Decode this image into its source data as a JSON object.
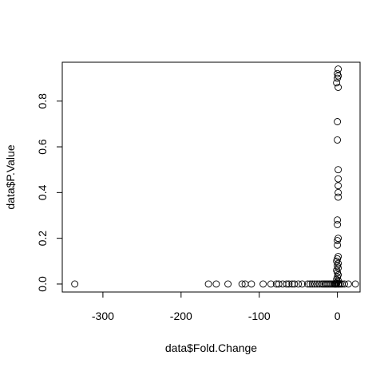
{
  "chart_data": {
    "type": "scatter",
    "title": "",
    "xlabel": "data$Fold.Change",
    "ylabel": "data$P.Value",
    "xlim": [
      -352,
      29
    ],
    "ylim": [
      -0.035,
      0.97
    ],
    "x_ticks": [
      -300,
      -200,
      -100,
      0
    ],
    "x_tick_labels": [
      "-300",
      "-200",
      "-100",
      "0"
    ],
    "y_ticks": [
      0.0,
      0.2,
      0.4,
      0.6,
      0.8
    ],
    "y_tick_labels": [
      "0.0",
      "0.2",
      "0.4",
      "0.6",
      "0.8"
    ],
    "grid": false,
    "legend": "none",
    "marker": "open-circle",
    "colors": {
      "points": "#000000",
      "axes": "#000000",
      "background": "#ffffff"
    },
    "points": [
      {
        "x": -336,
        "y": 0.0
      },
      {
        "x": -165,
        "y": 0.0
      },
      {
        "x": -155,
        "y": 0.0
      },
      {
        "x": -140,
        "y": 0.0
      },
      {
        "x": -122,
        "y": 0.0
      },
      {
        "x": -118,
        "y": 0.0
      },
      {
        "x": -110,
        "y": 0.0
      },
      {
        "x": -95,
        "y": 0.0
      },
      {
        "x": -85,
        "y": 0.0
      },
      {
        "x": -78,
        "y": 0.0
      },
      {
        "x": -75,
        "y": 0.0
      },
      {
        "x": -70,
        "y": 0.0
      },
      {
        "x": -65,
        "y": 0.0
      },
      {
        "x": -62,
        "y": 0.0
      },
      {
        "x": -58,
        "y": 0.0
      },
      {
        "x": -55,
        "y": 0.0
      },
      {
        "x": -50,
        "y": 0.0
      },
      {
        "x": -45,
        "y": 0.0
      },
      {
        "x": -38,
        "y": 0.0
      },
      {
        "x": -35,
        "y": 0.0
      },
      {
        "x": -32,
        "y": 0.0
      },
      {
        "x": -29,
        "y": 0.0
      },
      {
        "x": -26,
        "y": 0.0
      },
      {
        "x": -23,
        "y": 0.0
      },
      {
        "x": -20,
        "y": 0.0
      },
      {
        "x": -18,
        "y": 0.0
      },
      {
        "x": -16,
        "y": 0.0
      },
      {
        "x": -14,
        "y": 0.0
      },
      {
        "x": -12,
        "y": 0.0
      },
      {
        "x": -10,
        "y": 0.0
      },
      {
        "x": -8,
        "y": 0.0
      },
      {
        "x": -6,
        "y": 0.0
      },
      {
        "x": -4,
        "y": 0.0
      },
      {
        "x": -3,
        "y": 0.0
      },
      {
        "x": -2,
        "y": 0.0
      },
      {
        "x": -1,
        "y": 0.0
      },
      {
        "x": 1,
        "y": 0.0
      },
      {
        "x": 2,
        "y": 0.0
      },
      {
        "x": 4,
        "y": 0.0
      },
      {
        "x": 6,
        "y": 0.0
      },
      {
        "x": 9,
        "y": 0.0
      },
      {
        "x": 14,
        "y": 0.0
      },
      {
        "x": 23,
        "y": 0.0
      },
      {
        "x": -1,
        "y": 0.005
      },
      {
        "x": 0,
        "y": 0.01
      },
      {
        "x": 1,
        "y": 0.015
      },
      {
        "x": -1,
        "y": 0.02
      },
      {
        "x": 0,
        "y": 0.03
      },
      {
        "x": 1,
        "y": 0.04
      },
      {
        "x": 0,
        "y": 0.05
      },
      {
        "x": -1,
        "y": 0.06
      },
      {
        "x": 1,
        "y": 0.07
      },
      {
        "x": 0,
        "y": 0.08
      },
      {
        "x": 1,
        "y": 0.09
      },
      {
        "x": -1,
        "y": 0.1
      },
      {
        "x": 0,
        "y": 0.11
      },
      {
        "x": 1,
        "y": 0.12
      },
      {
        "x": 0,
        "y": 0.17
      },
      {
        "x": 0,
        "y": 0.19
      },
      {
        "x": 1,
        "y": 0.2
      },
      {
        "x": 0,
        "y": 0.26
      },
      {
        "x": 0,
        "y": 0.28
      },
      {
        "x": 1,
        "y": 0.38
      },
      {
        "x": 1,
        "y": 0.4
      },
      {
        "x": 1,
        "y": 0.43
      },
      {
        "x": 1,
        "y": 0.46
      },
      {
        "x": 1,
        "y": 0.5
      },
      {
        "x": 0,
        "y": 0.63
      },
      {
        "x": 0,
        "y": 0.71
      },
      {
        "x": 1,
        "y": 0.86
      },
      {
        "x": -1,
        "y": 0.88
      },
      {
        "x": 0,
        "y": 0.9
      },
      {
        "x": 1,
        "y": 0.91
      },
      {
        "x": 0,
        "y": 0.92
      },
      {
        "x": 1,
        "y": 0.94
      }
    ]
  }
}
